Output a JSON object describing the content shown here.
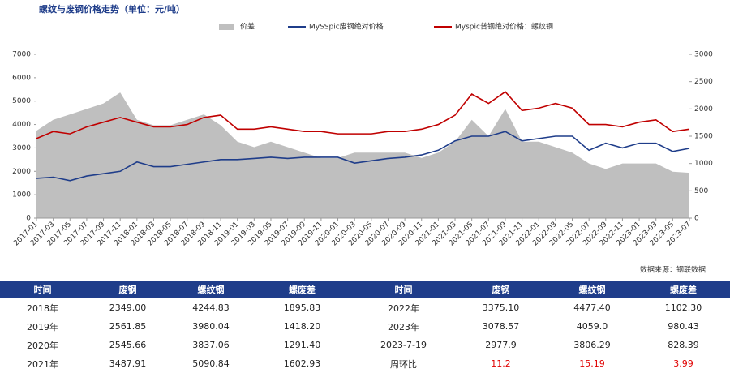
{
  "chart_data": {
    "type": "line",
    "title": "螺纹与废钢价格走势（单位：元/吨）",
    "categories": [
      "2017-01",
      "2017-03",
      "2017-05",
      "2017-07",
      "2017-09",
      "2017-11",
      "2018-01",
      "2018-03",
      "2018-05",
      "2018-07",
      "2018-09",
      "2018-11",
      "2019-01",
      "2019-03",
      "2019-05",
      "2019-07",
      "2019-09",
      "2019-11",
      "2020-01",
      "2020-03",
      "2020-05",
      "2020-07",
      "2020-09",
      "2020-11",
      "2021-01",
      "2021-03",
      "2021-05",
      "2021-07",
      "2021-09",
      "2021-11",
      "2022-01",
      "2022-03",
      "2022-05",
      "2022-07",
      "2022-09",
      "2022-11",
      "2023-01",
      "2023-03",
      "2023-05",
      "2023-07"
    ],
    "series": [
      {
        "name": "价差",
        "type": "area",
        "axis": "y2",
        "color": "#bfbfbf",
        "values": [
          1600,
          1800,
          1900,
          2000,
          2100,
          2300,
          1800,
          1700,
          1700,
          1800,
          1900,
          1700,
          1400,
          1300,
          1400,
          1300,
          1200,
          1100,
          1100,
          1200,
          1200,
          1200,
          1200,
          1100,
          1200,
          1400,
          1800,
          1500,
          2000,
          1400,
          1400,
          1300,
          1200,
          1000,
          900,
          1000,
          1000,
          1000,
          850,
          830
        ]
      },
      {
        "name": "MySSpic废钢绝对价格",
        "color": "#1f3d8a",
        "values": [
          1700,
          1750,
          1600,
          1800,
          1900,
          2000,
          2400,
          2200,
          2200,
          2300,
          2400,
          2500,
          2500,
          2550,
          2600,
          2550,
          2600,
          2600,
          2600,
          2350,
          2450,
          2550,
          2600,
          2700,
          2900,
          3300,
          3500,
          3500,
          3700,
          3300,
          3400,
          3500,
          3500,
          2900,
          3200,
          3000,
          3200,
          3200,
          2850,
          2980
        ]
      },
      {
        "name": "Myspic普钢绝对价格：螺纹钢",
        "color": "#c00000",
        "values": [
          3400,
          3700,
          3600,
          3900,
          4100,
          4300,
          4100,
          3900,
          3900,
          4000,
          4300,
          4400,
          3800,
          3800,
          3900,
          3800,
          3700,
          3700,
          3600,
          3600,
          3600,
          3700,
          3700,
          3800,
          4000,
          4400,
          5300,
          4900,
          5400,
          4600,
          4700,
          4900,
          4700,
          4000,
          4000,
          3900,
          4100,
          4200,
          3700,
          3800
        ]
      }
    ],
    "ylim": [
      0,
      7000
    ],
    "yticks": [
      0,
      1000,
      2000,
      3000,
      4000,
      5000,
      6000,
      7000
    ],
    "y2lim": [
      0,
      3000
    ],
    "y2ticks": [
      0,
      500,
      1000,
      1500,
      2000,
      2500,
      3000
    ]
  },
  "source": "数据来源：钢联数据",
  "table": {
    "header": [
      "时间",
      "废钢",
      "螺纹钢",
      "螺废差",
      "时间",
      "废钢",
      "螺纹钢",
      "螺废差"
    ],
    "rows": [
      [
        "2018年",
        "2349.00",
        "4244.83",
        "1895.83",
        "2022年",
        "3375.10",
        "4477.40",
        "1102.30"
      ],
      [
        "2019年",
        "2561.85",
        "3980.04",
        "1418.20",
        "2023年",
        "3078.57",
        "4059.0",
        "980.43"
      ],
      [
        "2020年",
        "2545.66",
        "3837.06",
        "1291.40",
        "2023-7-19",
        "2977.9",
        "3806.29",
        "828.39"
      ],
      [
        "2021年",
        "3487.91",
        "5090.84",
        "1602.93",
        "周环比",
        "11.2",
        "15.19",
        "3.99"
      ]
    ]
  }
}
